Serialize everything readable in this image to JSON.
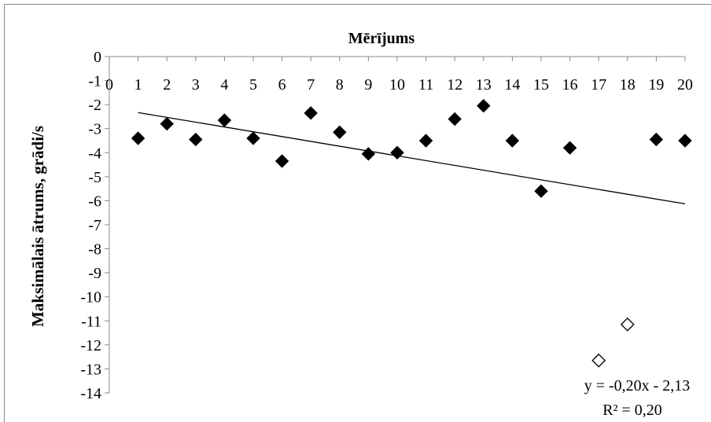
{
  "chart_data": {
    "type": "scatter",
    "title": "",
    "xlabel": "Mērījums",
    "ylabel": "Maksimālais ātrums, grādi/s",
    "xlim": [
      0,
      20
    ],
    "ylim": [
      -14,
      0
    ],
    "x_ticks": [
      "0",
      "1",
      "2",
      "3",
      "4",
      "5",
      "6",
      "7",
      "8",
      "9",
      "10",
      "11",
      "12",
      "13",
      "14",
      "15",
      "16",
      "17",
      "18",
      "19",
      "20"
    ],
    "y_ticks": [
      "0",
      "-1",
      "-2",
      "-3",
      "-4",
      "-5",
      "-6",
      "-7",
      "-8",
      "-9",
      "-10",
      "-11",
      "-12",
      "-13",
      "-14"
    ],
    "grid": false,
    "series": [
      {
        "marker": "filled-diamond",
        "color": "#000000",
        "points": [
          {
            "x": 1,
            "y": -3.4
          },
          {
            "x": 2,
            "y": -2.8
          },
          {
            "x": 3,
            "y": -3.45
          },
          {
            "x": 4,
            "y": -2.65
          },
          {
            "x": 5,
            "y": -3.4
          },
          {
            "x": 6,
            "y": -4.35
          },
          {
            "x": 7,
            "y": -2.35
          },
          {
            "x": 8,
            "y": -3.15
          },
          {
            "x": 9,
            "y": -4.05
          },
          {
            "x": 10,
            "y": -4.0
          },
          {
            "x": 11,
            "y": -3.5
          },
          {
            "x": 12,
            "y": -2.6
          },
          {
            "x": 13,
            "y": -2.05
          },
          {
            "x": 14,
            "y": -3.5
          },
          {
            "x": 15,
            "y": -5.6
          },
          {
            "x": 16,
            "y": -3.8
          },
          {
            "x": 19,
            "y": -3.45
          },
          {
            "x": 20,
            "y": -3.5
          }
        ]
      },
      {
        "marker": "hollow-diamond",
        "color": "#000000",
        "points": [
          {
            "x": 17,
            "y": -12.65
          },
          {
            "x": 18,
            "y": -11.15
          }
        ]
      }
    ],
    "trendline": {
      "slope": -0.2,
      "intercept": -2.13,
      "x_range": [
        1,
        20
      ],
      "equation": "y = -0,20x - 2,13",
      "r_squared": "R² = 0,20"
    }
  }
}
